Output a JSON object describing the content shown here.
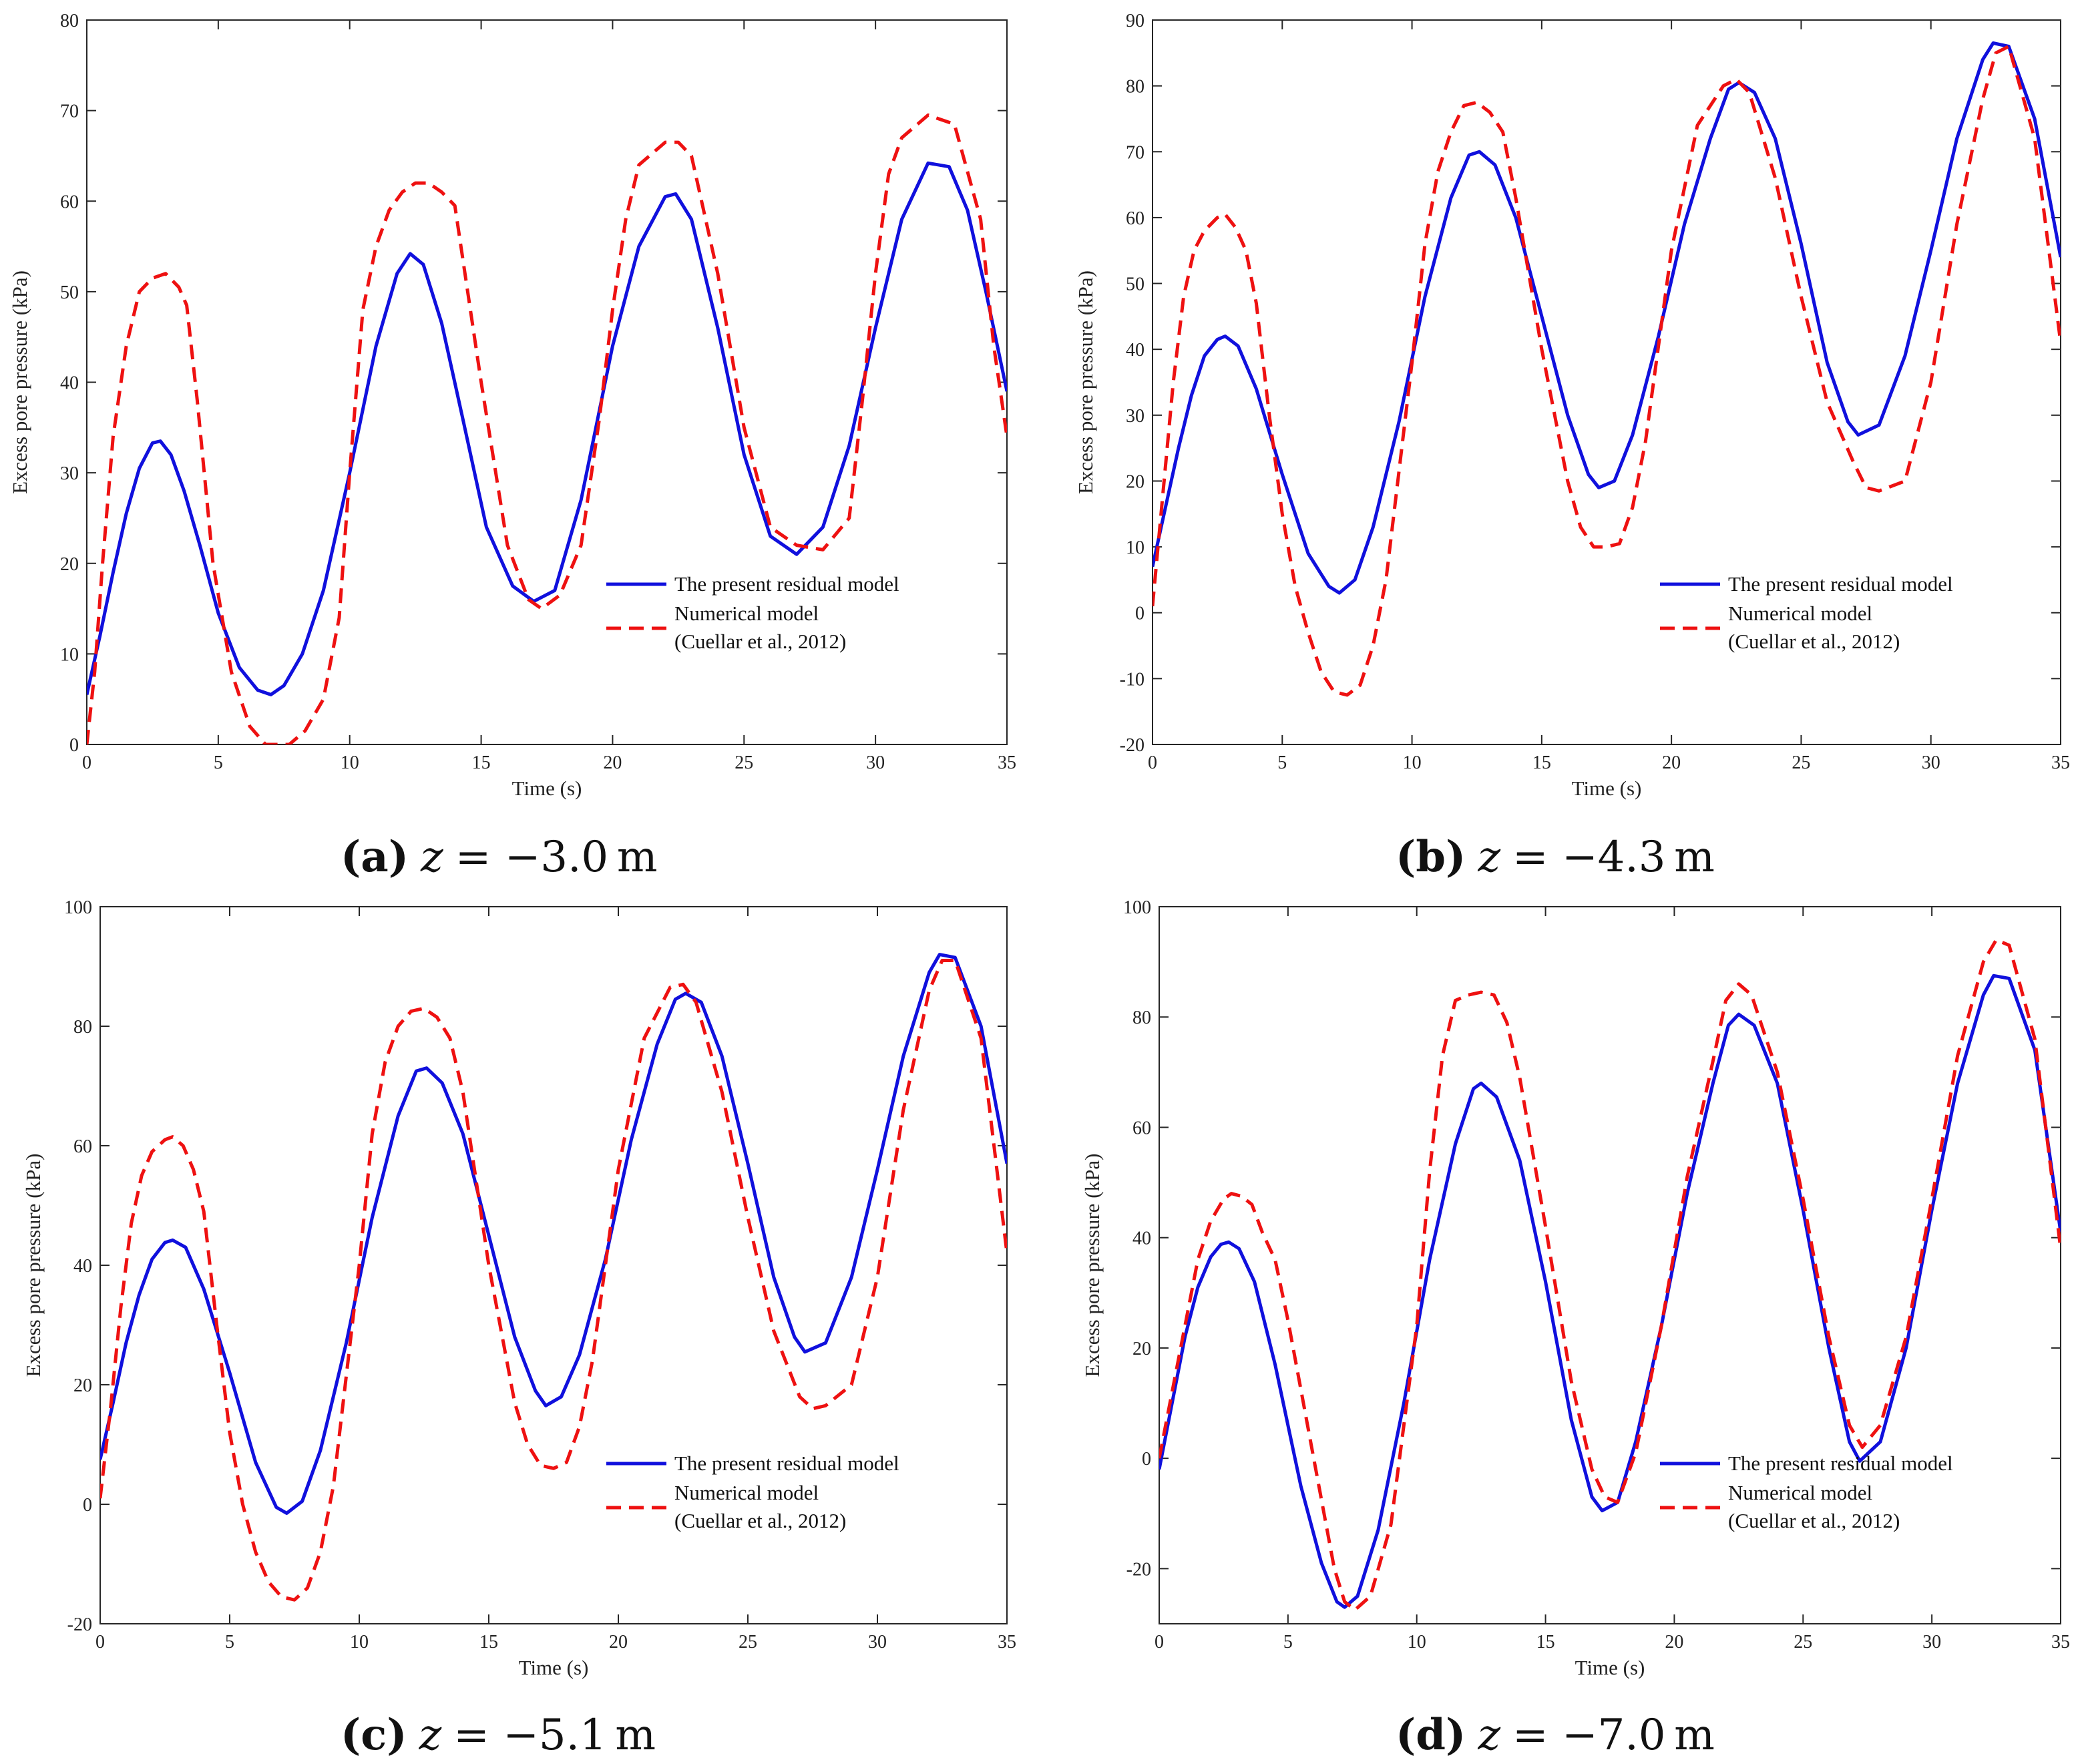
{
  "figure": {
    "series_styles": [
      {
        "name": "The present residual model",
        "color": "#1010dd",
        "dash": "solid"
      },
      {
        "name": "Numerical model",
        "color": "#ee1111",
        "dash": "dashed"
      }
    ]
  },
  "chart_data": [
    {
      "id": "a",
      "type": "line",
      "caption": {
        "letter": "(a)",
        "var": "z",
        "value": "= −3.0 m"
      },
      "title": "",
      "xlabel": "Time (s)",
      "ylabel": "Excess pore pressure (kPa)",
      "xlim": [
        0,
        35
      ],
      "ylim": [
        0,
        80
      ],
      "xticks": [
        0,
        5,
        10,
        15,
        20,
        25,
        30,
        35
      ],
      "yticks": [
        0,
        10,
        20,
        30,
        40,
        50,
        60,
        70,
        80
      ],
      "grid": false,
      "legend": {
        "position": "lower-right",
        "entries": [
          "The present residual model",
          "Numerical model",
          "(Cuellar et al., 2012)"
        ]
      },
      "series": [
        {
          "name": "The present residual model",
          "x": [
            0,
            0.5,
            1,
            1.5,
            2,
            2.5,
            2.8,
            3.2,
            3.7,
            4.3,
            5,
            5.8,
            6.5,
            7,
            7.5,
            8.2,
            9,
            10,
            11,
            11.8,
            12.3,
            12.8,
            13.5,
            14.3,
            15.2,
            16.2,
            17,
            17.8,
            18.8,
            20,
            21,
            22,
            22.4,
            23,
            24,
            25,
            26,
            27,
            28,
            29,
            30,
            31,
            32,
            32.8,
            33.5,
            34.2,
            35
          ],
          "y": [
            5.5,
            12,
            19,
            25.5,
            30.5,
            33.3,
            33.5,
            32,
            28,
            22,
            14.5,
            8.5,
            6,
            5.5,
            6.5,
            10,
            17,
            30,
            44,
            52,
            54.2,
            53,
            46.5,
            36,
            24,
            17.5,
            15.8,
            17,
            27,
            44,
            55,
            60.5,
            60.8,
            58,
            46,
            32,
            23,
            21,
            24,
            33,
            46,
            58,
            64.2,
            63.8,
            59,
            50,
            39
          ]
        },
        {
          "name": "Numerical model",
          "x": [
            0,
            0.3,
            0.6,
            1,
            1.5,
            2,
            2.5,
            3,
            3.5,
            3.8,
            4.2,
            4.8,
            5.5,
            6.2,
            6.8,
            7.3,
            7.7,
            8.3,
            9,
            9.6,
            10,
            10.5,
            11,
            11.5,
            12,
            12.5,
            13,
            13.5,
            14,
            15,
            16,
            16.8,
            17.3,
            18,
            18.8,
            19.5,
            20,
            20.5,
            21,
            22,
            22.5,
            23,
            24,
            25,
            26,
            27,
            28,
            29,
            29.5,
            30,
            30.5,
            31,
            32,
            32.5,
            33,
            34,
            34.5,
            35
          ],
          "y": [
            0,
            8,
            20,
            34,
            44,
            50,
            51.5,
            52,
            50.5,
            48.5,
            38,
            20,
            8,
            2,
            0,
            0,
            0,
            1.5,
            5,
            14,
            30,
            48,
            55,
            59,
            61,
            62,
            62,
            61,
            59.5,
            40,
            22,
            16,
            15,
            16.5,
            22,
            36,
            48,
            58,
            64,
            66.5,
            66.5,
            65,
            52,
            35,
            24,
            22,
            21.5,
            25,
            38,
            52,
            63,
            67,
            69.5,
            69,
            68.5,
            58,
            44,
            34
          ]
        }
      ]
    },
    {
      "id": "b",
      "type": "line",
      "caption": {
        "letter": "(b)",
        "var": "z",
        "value": "= −4.3 m"
      },
      "title": "",
      "xlabel": "Time (s)",
      "ylabel": "Excess pore pressure (kPa)",
      "xlim": [
        0,
        35
      ],
      "ylim": [
        -20,
        90
      ],
      "xticks": [
        0,
        5,
        10,
        15,
        20,
        25,
        30,
        35
      ],
      "yticks": [
        -20,
        -10,
        0,
        10,
        20,
        30,
        40,
        50,
        60,
        70,
        80,
        90
      ],
      "grid": false,
      "legend": {
        "position": "lower-right",
        "entries": [
          "The present residual model",
          "Numerical model",
          "(Cuellar et al., 2012)"
        ]
      },
      "series": [
        {
          "name": "The present residual model",
          "x": [
            0,
            0.5,
            1,
            1.5,
            2,
            2.5,
            2.8,
            3.3,
            4,
            5,
            6,
            6.8,
            7.2,
            7.8,
            8.5,
            9.5,
            10.5,
            11.5,
            12.2,
            12.6,
            13.2,
            14,
            15,
            16,
            16.8,
            17.2,
            17.8,
            18.5,
            19.5,
            20.5,
            21.5,
            22.2,
            22.6,
            23.2,
            24,
            25,
            26,
            26.8,
            27.2,
            28,
            29,
            30,
            31,
            32,
            32.4,
            33,
            34,
            35
          ],
          "y": [
            7,
            16,
            25,
            33,
            39,
            41.5,
            42,
            40.5,
            34,
            21,
            9,
            4,
            3,
            5,
            13,
            29,
            48,
            63,
            69.5,
            70,
            68,
            60,
            45,
            30,
            21,
            19,
            20,
            27,
            42,
            59,
            72,
            79.5,
            80.5,
            79,
            72,
            56,
            38,
            29,
            27,
            28.5,
            39,
            55,
            72,
            84,
            86.5,
            86,
            75,
            54
          ]
        },
        {
          "name": "Numerical model",
          "x": [
            0,
            0.4,
            0.8,
            1.2,
            1.6,
            2,
            2.5,
            2.8,
            3.2,
            3.6,
            4,
            4.5,
            5,
            5.5,
            6,
            6.5,
            7,
            7.5,
            8,
            8.5,
            9,
            10,
            10.5,
            11,
            11.5,
            12,
            12.5,
            13,
            13.5,
            14,
            15,
            16,
            16.5,
            17,
            17.5,
            18,
            18.5,
            19,
            20,
            21,
            22,
            22.5,
            23,
            24,
            25,
            26,
            27,
            27.5,
            28,
            29,
            30,
            31,
            32,
            32.5,
            33,
            34,
            35
          ],
          "y": [
            1,
            18,
            35,
            48,
            55,
            58,
            60,
            60.5,
            58.5,
            55,
            47,
            30,
            15,
            4,
            -3,
            -9,
            -12,
            -12.5,
            -11,
            -5,
            5,
            38,
            56,
            67,
            73,
            77,
            77.5,
            76,
            73,
            63,
            40,
            20,
            13,
            10,
            10,
            10.5,
            16,
            26,
            55,
            74,
            80,
            81,
            79,
            66,
            48,
            32,
            23,
            19,
            18.5,
            20,
            35,
            59,
            78,
            85,
            86,
            72,
            41
          ]
        }
      ]
    },
    {
      "id": "c",
      "type": "line",
      "caption": {
        "letter": "(c)",
        "var": "z",
        "value": "= −5.1 m"
      },
      "title": "",
      "xlabel": "Time (s)",
      "ylabel": "Excess pore pressure (kPa)",
      "xlim": [
        0,
        35
      ],
      "ylim": [
        -20,
        100
      ],
      "xticks": [
        0,
        5,
        10,
        15,
        20,
        25,
        30,
        35
      ],
      "yticks": [
        -20,
        0,
        20,
        40,
        60,
        80,
        100
      ],
      "grid": false,
      "legend": {
        "position": "lower-right",
        "entries": [
          "The present residual model",
          "Numerical model",
          "(Cuellar et al., 2012)"
        ]
      },
      "series": [
        {
          "name": "The present residual model",
          "x": [
            0,
            0.5,
            1,
            1.5,
            2,
            2.5,
            2.8,
            3.3,
            4,
            5,
            6,
            6.8,
            7.2,
            7.8,
            8.5,
            9.5,
            10.5,
            11.5,
            12.2,
            12.6,
            13.2,
            14,
            15,
            16,
            16.8,
            17.2,
            17.8,
            18.5,
            19.5,
            20.5,
            21.5,
            22.2,
            22.6,
            23.2,
            24,
            25,
            26,
            26.8,
            27.2,
            28,
            29,
            30,
            31,
            32,
            32.4,
            33,
            34,
            35
          ],
          "y": [
            7.5,
            17,
            27,
            35,
            41,
            43.8,
            44.2,
            43,
            36,
            22,
            7,
            -0.5,
            -1.5,
            0.5,
            9,
            27,
            48,
            65,
            72.5,
            73,
            70.5,
            62,
            45,
            28,
            19,
            16.5,
            18,
            25,
            41,
            61,
            77,
            84.5,
            85.5,
            84,
            75,
            57,
            38,
            28,
            25.5,
            27,
            38,
            56,
            75,
            89,
            92,
            91.5,
            80,
            57
          ]
        },
        {
          "name": "Numerical model",
          "x": [
            0,
            0.4,
            0.8,
            1.2,
            1.6,
            2,
            2.5,
            2.8,
            3.2,
            3.6,
            4,
            4.5,
            5,
            5.5,
            6,
            6.5,
            7,
            7.5,
            8,
            8.5,
            9,
            10,
            10.5,
            11,
            11.5,
            12,
            12.5,
            13,
            13.5,
            14,
            15,
            16,
            16.5,
            17,
            17.5,
            18,
            18.5,
            19,
            20,
            21,
            22,
            22.5,
            23,
            24,
            25,
            26,
            27,
            27.5,
            28,
            29,
            30,
            31,
            32,
            32.5,
            33,
            34,
            35
          ],
          "y": [
            1,
            16,
            33,
            47,
            55,
            59,
            61,
            61.5,
            60,
            56,
            49,
            30,
            12,
            0,
            -8,
            -13,
            -15.5,
            -16,
            -14,
            -8,
            3,
            40,
            62,
            74,
            80,
            82.5,
            83,
            81.5,
            78,
            69,
            40,
            17,
            10,
            6.5,
            6,
            7,
            13,
            24,
            56,
            78,
            86.5,
            87,
            84,
            69,
            48,
            29,
            18,
            16,
            16.5,
            20,
            38,
            66,
            86,
            91,
            91,
            78,
            42
          ]
        }
      ]
    },
    {
      "id": "d",
      "type": "line",
      "caption": {
        "letter": "(d)",
        "var": "z",
        "value": "= −7.0 m"
      },
      "title": "",
      "xlabel": "Time (s)",
      "ylabel": "Excess pore pressure (kPa)",
      "xlim": [
        0,
        35
      ],
      "ylim": [
        -30,
        100
      ],
      "xticks": [
        0,
        5,
        10,
        15,
        20,
        25,
        30,
        35
      ],
      "yticks": [
        -20,
        0,
        20,
        40,
        60,
        80,
        100
      ],
      "grid": false,
      "legend": {
        "position": "lower-right",
        "entries": [
          "The present residual model",
          "Numerical model",
          "(Cuellar et al., 2012)"
        ]
      },
      "series": [
        {
          "name": "The present residual model",
          "x": [
            0,
            0.5,
            1,
            1.5,
            2,
            2.4,
            2.7,
            3.1,
            3.7,
            4.5,
            5.5,
            6.3,
            6.9,
            7.2,
            7.7,
            8.5,
            9.5,
            10.5,
            11.5,
            12.2,
            12.5,
            13.1,
            14,
            15,
            16,
            16.8,
            17.2,
            17.8,
            18.5,
            19.5,
            20.5,
            21.5,
            22.1,
            22.5,
            23.1,
            24,
            25,
            26,
            26.8,
            27.2,
            28,
            29,
            30,
            31,
            32,
            32.4,
            33,
            34,
            35
          ],
          "y": [
            -2,
            10,
            22,
            31,
            36.5,
            38.8,
            39.2,
            38,
            32,
            17,
            -5,
            -19,
            -26,
            -27,
            -25,
            -13,
            10,
            36,
            57,
            67,
            68,
            65.5,
            54,
            32,
            7,
            -7,
            -9.5,
            -8,
            3,
            24,
            48,
            68,
            78.5,
            80.5,
            78.5,
            68,
            45,
            20,
            3,
            -0.5,
            3,
            20,
            45,
            68,
            84,
            87.5,
            87,
            74,
            41
          ]
        },
        {
          "name": "Numerical model",
          "x": [
            0,
            0.5,
            1,
            1.5,
            2,
            2.5,
            2.8,
            3.2,
            3.6,
            4,
            4.5,
            5,
            6,
            6.8,
            7.2,
            7.6,
            8.2,
            9,
            10,
            10.5,
            11,
            11.5,
            12,
            12.5,
            13,
            13.5,
            14,
            15,
            16,
            16.8,
            17.3,
            17.8,
            18.5,
            19.5,
            20.5,
            21.5,
            22,
            22.5,
            23,
            24,
            25,
            26,
            26.8,
            27.3,
            28,
            29,
            30,
            31,
            32,
            32.5,
            33,
            34,
            35
          ],
          "y": [
            0,
            12,
            24,
            36,
            43,
            47,
            48,
            47.5,
            46,
            41,
            36,
            25,
            0,
            -20,
            -26,
            -27.5,
            -25,
            -12,
            24,
            52,
            73,
            83,
            84,
            84.5,
            84,
            79,
            69,
            42,
            14,
            -2,
            -7,
            -8,
            1,
            24,
            51,
            72,
            83,
            86,
            84,
            70,
            47,
            22,
            6,
            2,
            6,
            22,
            47,
            73,
            90,
            94,
            93,
            76,
            38
          ]
        }
      ]
    }
  ]
}
